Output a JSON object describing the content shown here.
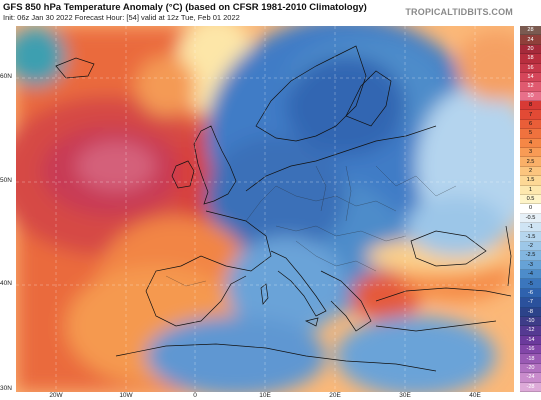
{
  "header": {
    "title": "GFS 850 hPa Temperature Anomaly (°C) (based on CFSR 1981-2010 Climatology)",
    "subtitle": "Init: 06z Jan 30 2022   Forecast Hour: [54]   valid at 12z Tue, Feb 01 2022",
    "site": "TROPICALTIDBITS.COM"
  },
  "map": {
    "lat_labels": [
      "60N",
      "50N",
      "40N",
      "30N"
    ],
    "lon_labels": [
      "20W",
      "10W",
      "0",
      "10E",
      "20E",
      "30E",
      "40E"
    ]
  },
  "colorbar": {
    "levels": [
      "28",
      "24",
      "20",
      "18",
      "16",
      "14",
      "12",
      "10",
      "8",
      "7",
      "6",
      "5",
      "4",
      "3",
      "2.5",
      "2",
      "1.5",
      "1",
      "0.5",
      "0",
      "-0.5",
      "-1",
      "-1.5",
      "-2",
      "-2.5",
      "-3",
      "-4",
      "-5",
      "-6",
      "-7",
      "-8",
      "-10",
      "-12",
      "-14",
      "-16",
      "-18",
      "-20",
      "-24",
      "-28"
    ],
    "colors": [
      "#7a5a50",
      "#8f3f3a",
      "#a52a3a",
      "#b82e3e",
      "#c6384a",
      "#d5465a",
      "#e05a70",
      "#e8708a",
      "#d83a35",
      "#e24a35",
      "#ea5e38",
      "#f0723e",
      "#f58746",
      "#f89b55",
      "#fab068",
      "#fcc57e",
      "#fdd895",
      "#fde8ae",
      "#fef4c8",
      "#ffffff",
      "#e6f0f8",
      "#cfe4f4",
      "#b6d6ee",
      "#9dc7e8",
      "#82b6e0",
      "#66a2d6",
      "#4d8cca",
      "#3b76bd",
      "#2f62ae",
      "#2b519c",
      "#2c438a",
      "#3e3c88",
      "#553a92",
      "#6b3a9c",
      "#8246a8",
      "#9a5ab4",
      "#b272c0",
      "#c98ccc",
      "#ddaad8"
    ]
  }
}
